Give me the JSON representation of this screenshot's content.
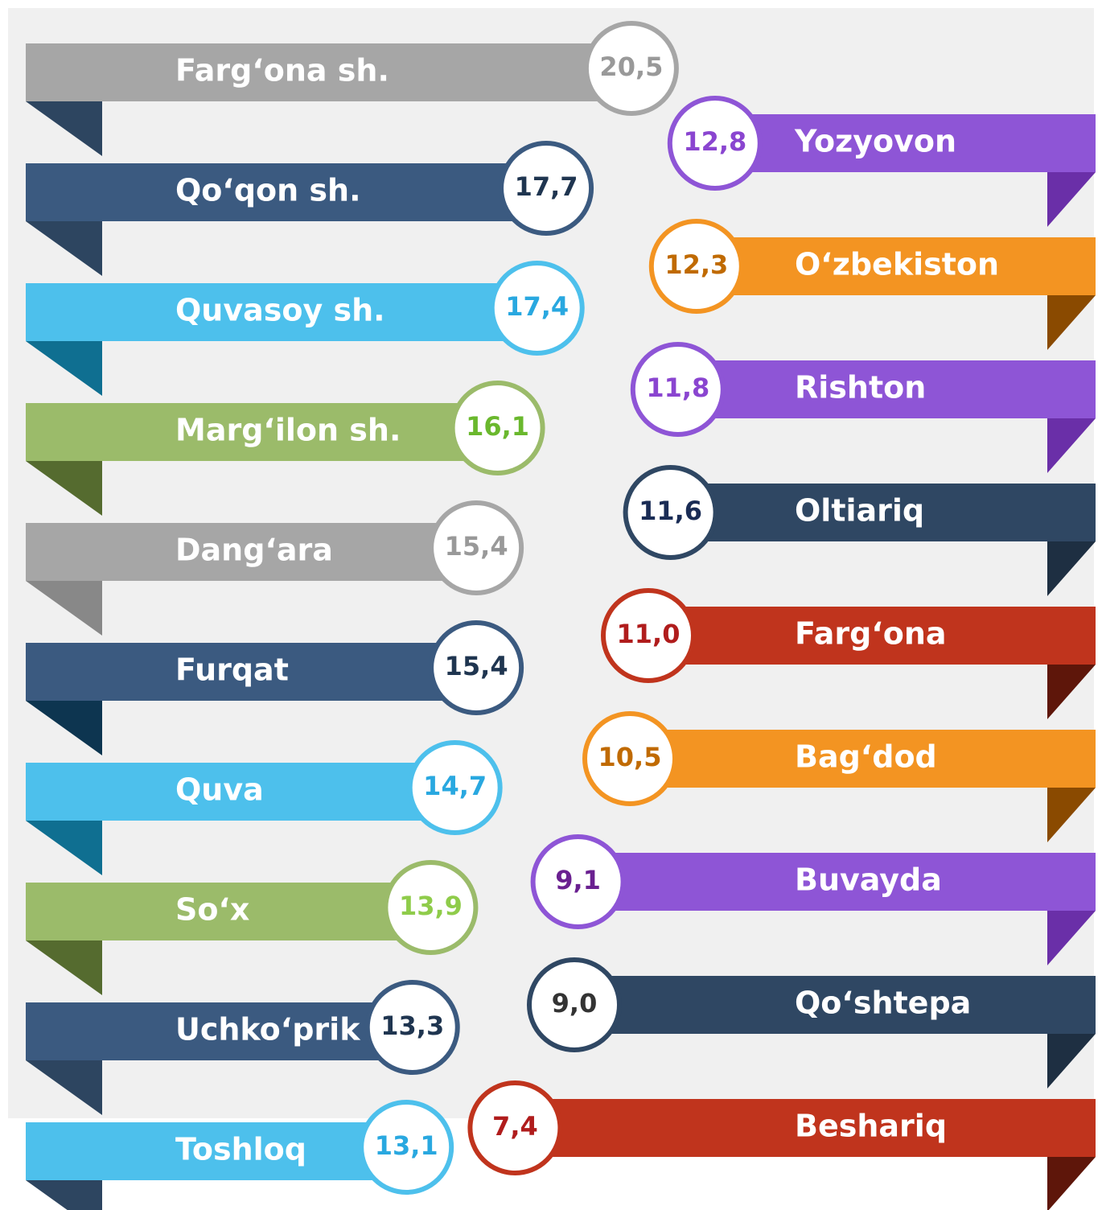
{
  "chart_data": {
    "type": "ribbon",
    "groups": [
      {
        "side": "left",
        "categories": [
          "Farg‘ona sh.",
          "Qo‘qon sh.",
          "Quvasoy sh.",
          "Marg‘ilon sh.",
          "Dang‘ara",
          "Furqat",
          "Quva",
          "So‘x",
          "Uchko‘prik",
          "Toshloq"
        ],
        "values": [
          20.5,
          17.7,
          17.4,
          16.1,
          15.4,
          15.4,
          14.7,
          13.9,
          13.3,
          13.1
        ],
        "value_labels": [
          "20,5",
          "17,7",
          "17,4",
          "16,1",
          "15,4",
          "15,4",
          "14,7",
          "13,9",
          "13,3",
          "13,1"
        ],
        "colors": [
          "#a6a6a6",
          "#3b5a80",
          "#4dc0ec",
          "#9bbb6a",
          "#a6a6a6",
          "#3b5a80",
          "#4dc0ec",
          "#9bbb6a",
          "#3b5a80",
          "#4dc0ec"
        ],
        "fold_colors": [
          "#2d4560",
          "#2d4560",
          "#0f6f91",
          "#556b2f",
          "#888888",
          "#0d3550",
          "#0f6f91",
          "#556b2f",
          "#2d4560",
          "#2d4560"
        ],
        "text_colors": [
          "#999999",
          "#1f3550",
          "#29a8e0",
          "#6ab82d",
          "#999999",
          "#1f3550",
          "#29a8e0",
          "#8fcc4a",
          "#1f3550",
          "#29a8e0"
        ]
      },
      {
        "side": "right",
        "categories": [
          "Yozyovon",
          "O‘zbekiston",
          "Rishton",
          "Oltiariq",
          "Farg‘ona",
          "Bag‘dod",
          "Buvayda",
          "Qo‘shtepa",
          "Beshariq"
        ],
        "values": [
          12.8,
          12.3,
          11.8,
          11.6,
          11.0,
          10.5,
          9.1,
          9.0,
          7.4
        ],
        "value_labels": [
          "12,8",
          "12,3",
          "11,8",
          "11,6",
          "11,0",
          "10,5",
          "9,1",
          "9,0",
          "7,4"
        ],
        "colors": [
          "#8e55d6",
          "#f39422",
          "#8e55d6",
          "#2f4763",
          "#c0341d",
          "#f39422",
          "#8e55d6",
          "#2f4763",
          "#c0341d"
        ],
        "fold_colors": [
          "#6a2fa8",
          "#8a4a00",
          "#6a2fa8",
          "#1e2f42",
          "#5e160a",
          "#8a4a00",
          "#6a2fa8",
          "#1e2f42",
          "#5e160a"
        ],
        "text_colors": [
          "#8a45d0",
          "#c06a00",
          "#8a45d0",
          "#1a2c55",
          "#b01c1c",
          "#c06a00",
          "#6a2090",
          "#333333",
          "#b01c1c"
        ]
      }
    ]
  }
}
